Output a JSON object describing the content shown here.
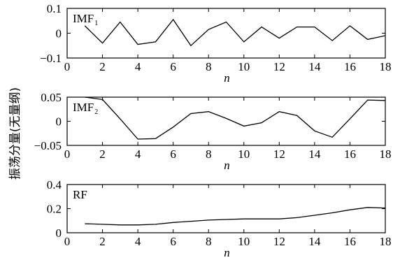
{
  "figure": {
    "ylabel": "振荡分量(无量纲)"
  },
  "chart_data": [
    {
      "type": "line",
      "label_main": "IMF",
      "label_sub": "1",
      "xlabel": "n",
      "xlim": [
        0,
        18
      ],
      "ylim": [
        -0.1,
        0.1
      ],
      "xticks": [
        0,
        2,
        4,
        6,
        8,
        10,
        12,
        14,
        16,
        18
      ],
      "xtick_labels": [
        "0",
        "2",
        "4",
        "6",
        "8",
        "10",
        "12",
        "14",
        "16",
        "18"
      ],
      "yticks": [
        -0.1,
        0,
        0.1
      ],
      "ytick_labels": [
        "−0.1",
        "0",
        "0.1"
      ],
      "x": [
        1,
        2,
        3,
        4,
        5,
        6,
        7,
        8,
        9,
        10,
        11,
        12,
        13,
        14,
        15,
        16,
        17,
        18
      ],
      "y": [
        0.03,
        -0.04,
        0.045,
        -0.045,
        -0.035,
        0.055,
        -0.05,
        0.015,
        0.045,
        -0.035,
        0.025,
        -0.02,
        0.025,
        0.025,
        -0.03,
        0.03,
        -0.025,
        -0.01
      ]
    },
    {
      "type": "line",
      "label_main": "IMF",
      "label_sub": "2",
      "xlabel": "n",
      "xlim": [
        0,
        18
      ],
      "ylim": [
        -0.05,
        0.05
      ],
      "xticks": [
        0,
        2,
        4,
        6,
        8,
        10,
        12,
        14,
        16,
        18
      ],
      "xtick_labels": [
        "0",
        "2",
        "4",
        "6",
        "8",
        "10",
        "12",
        "14",
        "16",
        "18"
      ],
      "yticks": [
        -0.05,
        0,
        0.05
      ],
      "ytick_labels": [
        "−0.05",
        "0",
        "0.05"
      ],
      "x": [
        1,
        2,
        3,
        4,
        5,
        6,
        7,
        8,
        9,
        10,
        11,
        12,
        13,
        14,
        15,
        16,
        17,
        18
      ],
      "y": [
        0.05,
        0.045,
        0.005,
        -0.037,
        -0.036,
        -0.012,
        0.016,
        0.02,
        0.006,
        -0.01,
        -0.003,
        0.02,
        0.012,
        -0.02,
        -0.033,
        0.005,
        0.044,
        0.043
      ]
    },
    {
      "type": "line",
      "label_main": "RF",
      "label_sub": "",
      "xlabel": "n",
      "xlim": [
        0,
        18
      ],
      "ylim": [
        0,
        0.4
      ],
      "xticks": [
        0,
        2,
        4,
        6,
        8,
        10,
        12,
        14,
        16,
        18
      ],
      "xtick_labels": [
        "0",
        "2",
        "4",
        "6",
        "8",
        "10",
        "12",
        "14",
        "16",
        "18"
      ],
      "yticks": [
        0,
        0.2,
        0.4
      ],
      "ytick_labels": [
        "0",
        "0.2",
        "0.4"
      ],
      "x": [
        1,
        2,
        3,
        4,
        5,
        6,
        7,
        8,
        9,
        10,
        11,
        12,
        13,
        14,
        15,
        16,
        17,
        18
      ],
      "y": [
        0.075,
        0.07,
        0.065,
        0.065,
        0.07,
        0.085,
        0.095,
        0.105,
        0.11,
        0.115,
        0.115,
        0.115,
        0.125,
        0.145,
        0.165,
        0.19,
        0.21,
        0.205
      ]
    }
  ]
}
